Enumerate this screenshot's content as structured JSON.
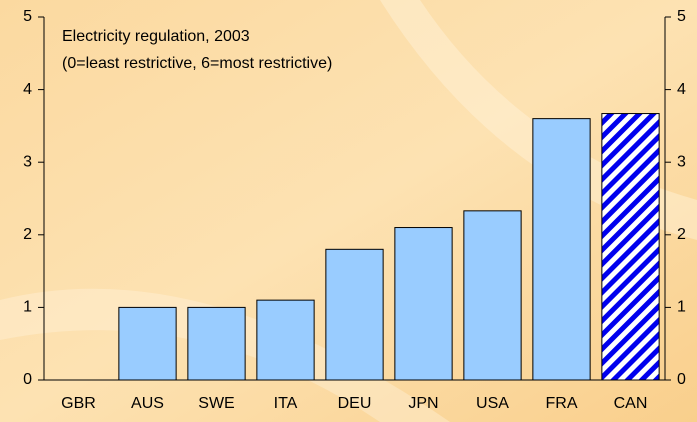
{
  "chart_data": {
    "type": "bar",
    "title": "Electricity regulation, 2003",
    "subtitle": "(0=least restrictive, 6=most restrictive)",
    "categories": [
      "GBR",
      "AUS",
      "SWE",
      "ITA",
      "DEU",
      "JPN",
      "USA",
      "FRA",
      "CAN"
    ],
    "values": [
      0,
      1.0,
      1.0,
      1.1,
      1.8,
      2.1,
      2.33,
      3.6,
      3.67
    ],
    "colors": [
      "#99ccff",
      "#99ccff",
      "#99ccff",
      "#99ccff",
      "#99ccff",
      "#99ccff",
      "#99ccff",
      "#99ccff",
      "#0000ee"
    ],
    "patterns": [
      "solid",
      "solid",
      "solid",
      "solid",
      "solid",
      "solid",
      "solid",
      "solid",
      "hatch"
    ],
    "ylim": [
      0,
      5
    ],
    "yticks": [
      0,
      1,
      2,
      3,
      4,
      5
    ],
    "y2lim": [
      0,
      5
    ],
    "y2ticks": [
      0,
      1,
      2,
      3,
      4,
      5
    ],
    "grid": false
  }
}
